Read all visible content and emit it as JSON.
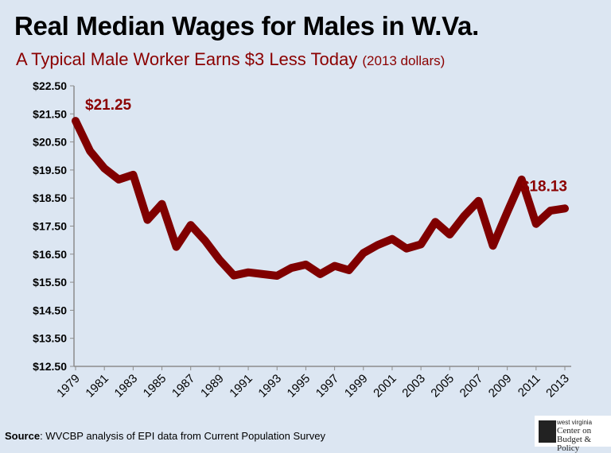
{
  "title": "Real Median Wages for Males in W.Va.",
  "subtitle": "A Typical Male Worker Earns $3 Less Today",
  "subtitle_unit": "(2013 dollars)",
  "source_label": "Source",
  "source_text": ": WVCBP analysis of EPI data from Current Population Survey",
  "logo": {
    "line1": "west virginia",
    "line2": "Center on",
    "line3": "Budget & Policy"
  },
  "colors": {
    "background": "#dce6f2",
    "line": "#800000",
    "accent": "#8b0000"
  },
  "chart_data": {
    "type": "line",
    "title": "Real Median Wages for Males in W.Va.",
    "x": [
      1979,
      1980,
      1981,
      1982,
      1983,
      1984,
      1985,
      1986,
      1987,
      1988,
      1989,
      1990,
      1991,
      1992,
      1993,
      1994,
      1995,
      1996,
      1997,
      1998,
      1999,
      2000,
      2001,
      2002,
      2003,
      2004,
      2005,
      2006,
      2007,
      2008,
      2009,
      2010,
      2011,
      2012,
      2013
    ],
    "series": [
      {
        "values": [
          21.25,
          20.18,
          19.56,
          19.16,
          19.33,
          17.72,
          18.29,
          16.76,
          17.54,
          16.98,
          16.3,
          15.74,
          15.85,
          15.79,
          15.73,
          16.01,
          16.13,
          15.79,
          16.08,
          15.93,
          16.54,
          16.83,
          17.04,
          16.7,
          16.85,
          17.65,
          17.2,
          17.86,
          18.4,
          16.8,
          18.0,
          19.16,
          17.58,
          18.05,
          18.13
        ]
      }
    ],
    "ylim": [
      12.5,
      22.5
    ],
    "yticks": [
      "$12.50",
      "$13.50",
      "$14.50",
      "$15.50",
      "$16.50",
      "$17.50",
      "$18.50",
      "$19.50",
      "$20.50",
      "$21.50",
      "$22.50"
    ],
    "xticks": [
      "1979",
      "1981",
      "1983",
      "1985",
      "1987",
      "1989",
      "1991",
      "1993",
      "1995",
      "1997",
      "1999",
      "2001",
      "2003",
      "2005",
      "2007",
      "2009",
      "2011",
      "2013"
    ],
    "annotations": [
      {
        "x": 1979,
        "text": "$21.25"
      },
      {
        "x": 2013,
        "text": "$18.13"
      }
    ],
    "grid": false
  }
}
